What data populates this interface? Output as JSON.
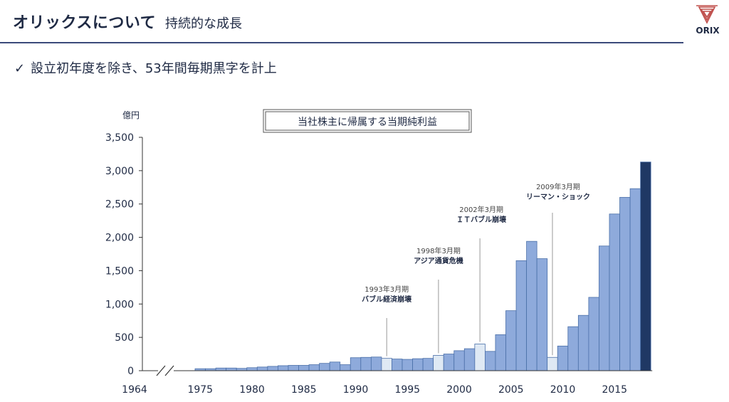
{
  "header": {
    "title": "オリックスについて",
    "subtitle": "持続的な成長",
    "logo_text": "ORIX"
  },
  "bullet": {
    "check": "✓",
    "text": "設立初年度を除き、53年間毎期黒字を計上"
  },
  "colors": {
    "bar": "#8eaadb",
    "bar_stroke": "#4a6fa8",
    "bar_event": "#dfe9f4",
    "bar_latest": "#1f3864",
    "text": "#1f2a44",
    "axis": "#333333",
    "logo": "#c0504d"
  },
  "chart_data": {
    "type": "bar",
    "title": "当社株主に帰属する当期純利益",
    "ylabel": "億円",
    "ylim": [
      0,
      3500
    ],
    "yticks": [
      "0",
      "500",
      "1,000",
      "1,500",
      "2,000",
      "2,500",
      "3,000",
      "3,500"
    ],
    "ytick_values": [
      0,
      500,
      1000,
      1500,
      2000,
      2500,
      3000,
      3500
    ],
    "xtick_labels": [
      "1964",
      "1975",
      "1980",
      "1985",
      "1990",
      "1995",
      "2000",
      "2005",
      "2010",
      "2015"
    ],
    "axis_break": true,
    "grid": false,
    "categories": [
      "1975",
      "1976",
      "1977",
      "1978",
      "1979",
      "1980",
      "1981",
      "1982",
      "1983",
      "1984",
      "1985",
      "1986",
      "1987",
      "1988",
      "1989",
      "1990",
      "1991",
      "1992",
      "1993",
      "1994",
      "1995",
      "1996",
      "1997",
      "1998",
      "1999",
      "2000",
      "2001",
      "2002",
      "2003",
      "2004",
      "2005",
      "2006",
      "2007",
      "2008",
      "2009",
      "2010",
      "2011",
      "2012",
      "2013",
      "2014",
      "2015",
      "2016",
      "2017",
      "2018"
    ],
    "values": [
      30,
      30,
      40,
      40,
      35,
      45,
      55,
      65,
      75,
      80,
      80,
      90,
      110,
      130,
      90,
      195,
      200,
      205,
      185,
      175,
      170,
      180,
      185,
      230,
      250,
      300,
      330,
      400,
      290,
      540,
      900,
      1650,
      1940,
      1680,
      200,
      370,
      660,
      830,
      1100,
      1870,
      2350,
      2600,
      2730,
      3130
    ],
    "highlight_years": [
      "1993",
      "1998",
      "2002",
      "2009"
    ],
    "latest_year": "2018",
    "annotations": [
      {
        "year": "1993",
        "date": "1993年3月期",
        "label": "バブル経済崩壊"
      },
      {
        "year": "1998",
        "date": "1998年3月期",
        "label": "アジア通貨危機"
      },
      {
        "year": "2002",
        "date": "2002年3月期",
        "label": "ＩＴバブル崩壊"
      },
      {
        "year": "2009",
        "date": "2009年3月期",
        "label": "リーマン・ショック"
      }
    ]
  }
}
